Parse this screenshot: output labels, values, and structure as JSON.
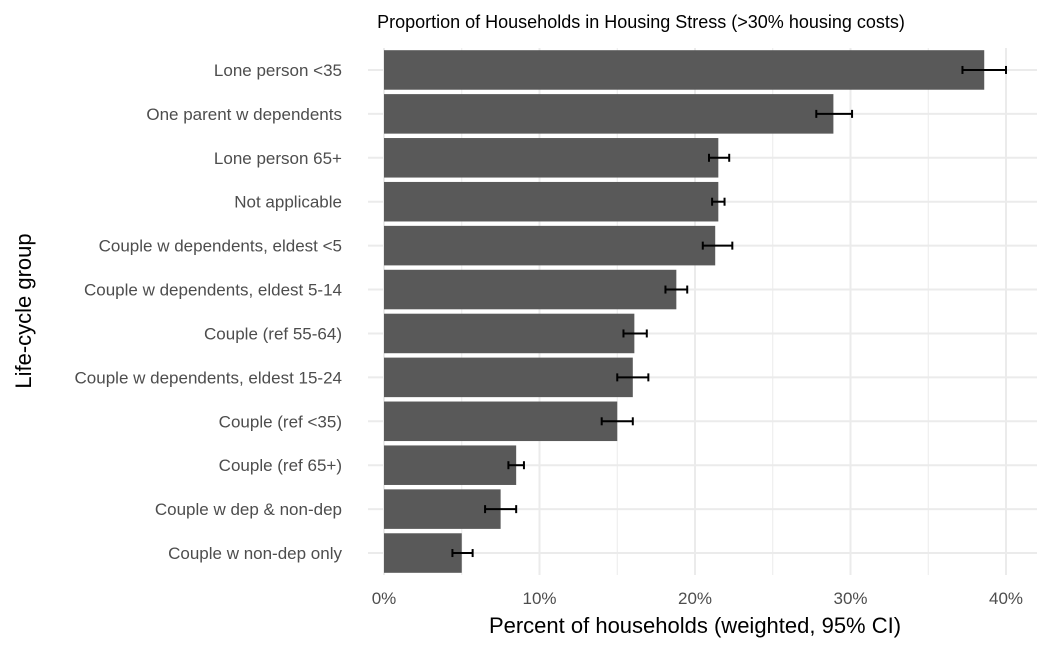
{
  "chart_data": {
    "type": "bar",
    "orientation": "horizontal",
    "title": "Proportion of Households in Housing Stress (>30% housing costs)",
    "xlabel": "Percent of households (weighted, 95% CI)",
    "ylabel": "Life-cycle group",
    "xlim": [
      0,
      0.42
    ],
    "x_ticks": [
      0,
      0.1,
      0.2,
      0.3,
      0.4
    ],
    "x_tick_labels": [
      "0%",
      "10%",
      "20%",
      "30%",
      "40%"
    ],
    "grid": true,
    "categories": [
      "Lone person <35",
      "One parent w dependents",
      "Lone person 65+",
      "Not applicable",
      "Couple w dependents, eldest <5",
      "Couple w dependents, eldest 5-14",
      "Couple (ref 55-64)",
      "Couple w dependents, eldest 15-24",
      "Couple (ref <35)",
      "Couple (ref 65+)",
      "Couple w dep & non-dep",
      "Couple w non-dep only"
    ],
    "values": [
      0.386,
      0.289,
      0.215,
      0.215,
      0.213,
      0.188,
      0.161,
      0.16,
      0.15,
      0.085,
      0.075,
      0.05
    ],
    "ci_lower": [
      0.372,
      0.278,
      0.209,
      0.211,
      0.205,
      0.181,
      0.154,
      0.15,
      0.14,
      0.08,
      0.065,
      0.044
    ],
    "ci_upper": [
      0.4,
      0.301,
      0.222,
      0.219,
      0.224,
      0.195,
      0.169,
      0.17,
      0.16,
      0.09,
      0.085,
      0.057
    ],
    "bar_color": "#595959",
    "grid_color": "#ebebeb",
    "errorbar_color": "#000000"
  }
}
